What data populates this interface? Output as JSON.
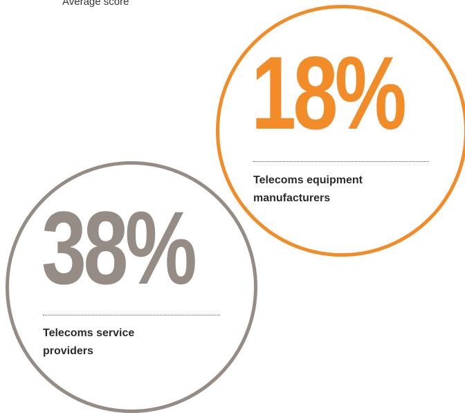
{
  "caption": "Average score",
  "stats": [
    {
      "value": "18%",
      "label_line1": "Telecoms equipment",
      "label_line2": "manufacturers",
      "color": "#f28c28"
    },
    {
      "value": "38%",
      "label_line1": "Telecoms service",
      "label_line2": "providers",
      "color": "#968c86"
    }
  ]
}
